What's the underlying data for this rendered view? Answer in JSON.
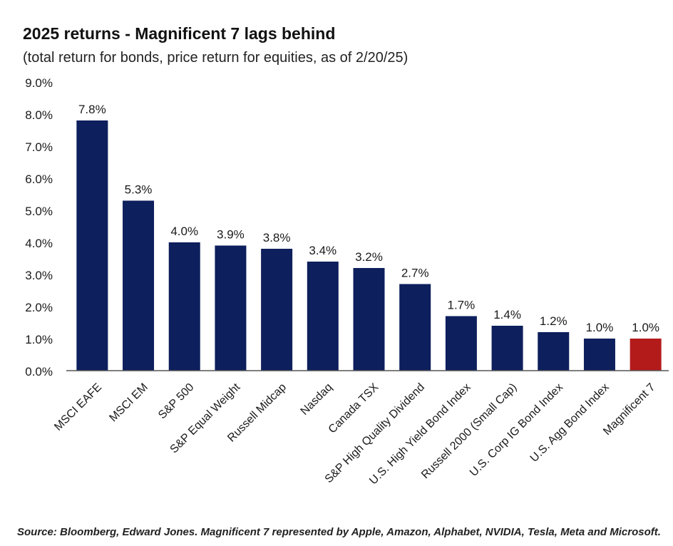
{
  "title": "2025 returns - Magnificent 7 lags behind",
  "subtitle": "(total return for bonds, price return for equities, as of 2/20/25)",
  "source": "Source: Bloomberg, Edward Jones. Magnificent 7 represented by Apple, Amazon, Alphabet, NVIDIA, Tesla, Meta and Microsoft.",
  "colors": {
    "bar": "#0d1f5c",
    "highlight": "#b31b1b",
    "axis": "#555555"
  },
  "chart_data": {
    "type": "bar",
    "categories": [
      "MSCI EAFE",
      "MSCI EM",
      "S&P 500",
      "S&P Equal Weight",
      "Russell Midcap",
      "Nasdaq",
      "Canada TSX",
      "S&P High Quality Dividend",
      "U.S. High Yield Bond Index",
      "Russell 2000 (Small Cap)",
      "U.S. Corp IG Bond Index",
      "U.S. Agg Bond Index",
      "Magnificent 7"
    ],
    "values": [
      7.8,
      5.3,
      4.0,
      3.9,
      3.8,
      3.4,
      3.2,
      2.7,
      1.7,
      1.4,
      1.2,
      1.0,
      1.0
    ],
    "data_labels": [
      "7.8%",
      "5.3%",
      "4.0%",
      "3.9%",
      "3.8%",
      "3.4%",
      "3.2%",
      "2.7%",
      "1.7%",
      "1.4%",
      "1.2%",
      "1.0%",
      "1.0%"
    ],
    "highlight_category": "Magnificent 7",
    "ylim": [
      0,
      9
    ],
    "yticks": [
      0,
      1,
      2,
      3,
      4,
      5,
      6,
      7,
      8,
      9
    ],
    "ytick_labels": [
      "0.0%",
      "1.0%",
      "2.0%",
      "3.0%",
      "4.0%",
      "5.0%",
      "6.0%",
      "7.0%",
      "8.0%",
      "9.0%"
    ],
    "grid": false
  }
}
